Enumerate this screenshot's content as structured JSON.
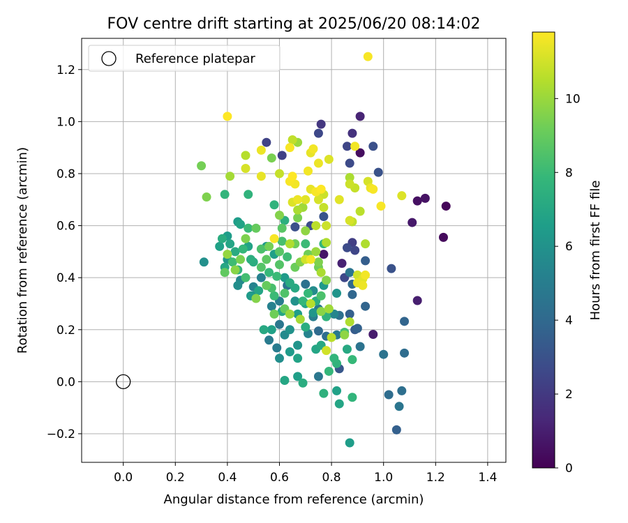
{
  "chart_data": {
    "type": "scatter",
    "title": "FOV centre drift starting at 2025/06/20 08:14:02",
    "xlabel": "Angular distance from reference (arcmin)",
    "ylabel": "Rotation from reference (arcmin)",
    "xlim": [
      -0.16,
      1.47
    ],
    "ylim": [
      -0.31,
      1.32
    ],
    "xticks": [
      "0.0",
      "0.2",
      "0.4",
      "0.6",
      "0.8",
      "1.0",
      "1.2",
      "1.4"
    ],
    "xtick_values": [
      0,
      0.2,
      0.4,
      0.6,
      0.8,
      1.0,
      1.2,
      1.4
    ],
    "yticks": [
      "−0.2",
      "0.0",
      "0.2",
      "0.4",
      "0.6",
      "0.8",
      "1.0",
      "1.2"
    ],
    "ytick_values": [
      -0.2,
      0,
      0.2,
      0.4,
      0.6,
      0.8,
      1.0,
      1.2
    ],
    "grid": true,
    "legend": {
      "position": "top-left",
      "label": "Reference platepar"
    },
    "reference_point": {
      "x": 0.0,
      "y": 0.0
    },
    "colorbar": {
      "label": "Hours from first FF file",
      "colormap": "viridis",
      "range": [
        0,
        11.8
      ],
      "ticks": [
        "0",
        "2",
        "4",
        "6",
        "8",
        "10"
      ],
      "tick_values": [
        0,
        2,
        4,
        6,
        8,
        10
      ]
    },
    "points": [
      {
        "x": 1.24,
        "y": 0.675,
        "h": 0.2
      },
      {
        "x": 1.23,
        "y": 0.555,
        "h": 0.3
      },
      {
        "x": 1.13,
        "y": 0.695,
        "h": 0.5
      },
      {
        "x": 1.16,
        "y": 0.705,
        "h": 0.6
      },
      {
        "x": 1.11,
        "y": 0.612,
        "h": 0.8
      },
      {
        "x": 1.13,
        "y": 0.312,
        "h": 1.0
      },
      {
        "x": 0.91,
        "y": 1.02,
        "h": 1.2
      },
      {
        "x": 0.91,
        "y": 0.88,
        "h": 0.4
      },
      {
        "x": 0.96,
        "y": 0.182,
        "h": 0.9
      },
      {
        "x": 0.77,
        "y": 0.49,
        "h": 0.7
      },
      {
        "x": 0.84,
        "y": 0.455,
        "h": 1.1
      },
      {
        "x": 0.76,
        "y": 0.99,
        "h": 1.9
      },
      {
        "x": 0.88,
        "y": 0.955,
        "h": 1.7
      },
      {
        "x": 0.75,
        "y": 0.955,
        "h": 2.6
      },
      {
        "x": 0.55,
        "y": 0.92,
        "h": 2.4
      },
      {
        "x": 0.61,
        "y": 0.87,
        "h": 2.3
      },
      {
        "x": 0.86,
        "y": 0.905,
        "h": 2.5
      },
      {
        "x": 0.96,
        "y": 0.905,
        "h": 2.9
      },
      {
        "x": 0.87,
        "y": 0.84,
        "h": 2.7
      },
      {
        "x": 0.98,
        "y": 0.805,
        "h": 3.0
      },
      {
        "x": 0.72,
        "y": 0.6,
        "h": 2.8
      },
      {
        "x": 0.66,
        "y": 0.595,
        "h": 2.9
      },
      {
        "x": 0.77,
        "y": 0.635,
        "h": 3.1
      },
      {
        "x": 0.88,
        "y": 0.535,
        "h": 2.2
      },
      {
        "x": 0.86,
        "y": 0.515,
        "h": 2.7
      },
      {
        "x": 0.89,
        "y": 0.505,
        "h": 2.5
      },
      {
        "x": 0.85,
        "y": 0.4,
        "h": 2.6
      },
      {
        "x": 0.93,
        "y": 0.465,
        "h": 3.5
      },
      {
        "x": 1.03,
        "y": 0.435,
        "h": 3.0
      },
      {
        "x": 1.05,
        "y": -0.185,
        "h": 3.6
      },
      {
        "x": 1.08,
        "y": 0.232,
        "h": 3.8
      },
      {
        "x": 1.07,
        "y": -0.035,
        "h": 4.3
      },
      {
        "x": 1.02,
        "y": -0.05,
        "h": 4.2
      },
      {
        "x": 1.06,
        "y": -0.095,
        "h": 4.6
      },
      {
        "x": 1.08,
        "y": 0.11,
        "h": 4.2
      },
      {
        "x": 1.0,
        "y": 0.105,
        "h": 4.5
      },
      {
        "x": 0.93,
        "y": 0.29,
        "h": 3.8
      },
      {
        "x": 0.87,
        "y": 0.26,
        "h": 3.6
      },
      {
        "x": 0.88,
        "y": 0.335,
        "h": 3.9
      },
      {
        "x": 0.88,
        "y": 0.375,
        "h": 4.0
      },
      {
        "x": 0.87,
        "y": 0.42,
        "h": 4.6
      },
      {
        "x": 0.9,
        "y": 0.205,
        "h": 3.7
      },
      {
        "x": 0.89,
        "y": 0.2,
        "h": 3.4
      },
      {
        "x": 0.91,
        "y": 0.135,
        "h": 4.5
      },
      {
        "x": 0.83,
        "y": 0.255,
        "h": 4.4
      },
      {
        "x": 0.83,
        "y": 0.05,
        "h": 3.2
      },
      {
        "x": 0.75,
        "y": 0.02,
        "h": 4.7
      },
      {
        "x": 0.75,
        "y": 0.195,
        "h": 4.1
      },
      {
        "x": 0.78,
        "y": 0.175,
        "h": 4.2
      },
      {
        "x": 0.82,
        "y": 0.18,
        "h": 4.8
      },
      {
        "x": 0.71,
        "y": 0.185,
        "h": 5.3
      },
      {
        "x": 0.7,
        "y": 0.375,
        "h": 4.4
      },
      {
        "x": 0.63,
        "y": 0.37,
        "h": 4.5
      },
      {
        "x": 0.6,
        "y": 0.22,
        "h": 4.7
      },
      {
        "x": 0.59,
        "y": 0.13,
        "h": 4.9
      },
      {
        "x": 0.56,
        "y": 0.16,
        "h": 4.9
      },
      {
        "x": 0.57,
        "y": 0.29,
        "h": 5.2
      },
      {
        "x": 0.6,
        "y": 0.31,
        "h": 5.0
      },
      {
        "x": 0.53,
        "y": 0.4,
        "h": 5.2
      },
      {
        "x": 0.5,
        "y": 0.33,
        "h": 5.6
      },
      {
        "x": 0.5,
        "y": 0.365,
        "h": 5.3
      },
      {
        "x": 0.44,
        "y": 0.37,
        "h": 5.8
      },
      {
        "x": 0.45,
        "y": 0.39,
        "h": 5.5
      },
      {
        "x": 0.31,
        "y": 0.46,
        "h": 5.9
      },
      {
        "x": 0.4,
        "y": 0.47,
        "h": 6.2
      },
      {
        "x": 0.44,
        "y": 0.615,
        "h": 6.5
      },
      {
        "x": 0.45,
        "y": 0.605,
        "h": 6.8
      },
      {
        "x": 0.48,
        "y": 0.72,
        "h": 7.6
      },
      {
        "x": 0.39,
        "y": 0.72,
        "h": 7.7
      },
      {
        "x": 0.58,
        "y": 0.68,
        "h": 7.6
      },
      {
        "x": 0.62,
        "y": 0.62,
        "h": 7.4
      },
      {
        "x": 0.55,
        "y": 0.52,
        "h": 6.3
      },
      {
        "x": 0.58,
        "y": 0.49,
        "h": 6.6
      },
      {
        "x": 0.62,
        "y": 0.4,
        "h": 6.4
      },
      {
        "x": 0.61,
        "y": 0.27,
        "h": 7.0
      },
      {
        "x": 0.66,
        "y": 0.31,
        "h": 6.0
      },
      {
        "x": 0.66,
        "y": 0.36,
        "h": 7.1
      },
      {
        "x": 0.7,
        "y": 0.3,
        "h": 6.8
      },
      {
        "x": 0.73,
        "y": 0.265,
        "h": 6.2
      },
      {
        "x": 0.74,
        "y": 0.31,
        "h": 7.4
      },
      {
        "x": 0.67,
        "y": 0.14,
        "h": 6.1
      },
      {
        "x": 0.67,
        "y": 0.09,
        "h": 6.8
      },
      {
        "x": 0.64,
        "y": 0.115,
        "h": 6.4
      },
      {
        "x": 0.6,
        "y": 0.09,
        "h": 5.8
      },
      {
        "x": 0.62,
        "y": 0.005,
        "h": 7.0
      },
      {
        "x": 0.67,
        "y": 0.02,
        "h": 6.6
      },
      {
        "x": 0.69,
        "y": -0.005,
        "h": 7.3
      },
      {
        "x": 0.74,
        "y": 0.125,
        "h": 6.9
      },
      {
        "x": 0.76,
        "y": 0.14,
        "h": 7.1
      },
      {
        "x": 0.79,
        "y": 0.04,
        "h": 7.8
      },
      {
        "x": 0.82,
        "y": 0.07,
        "h": 7.6
      },
      {
        "x": 0.82,
        "y": -0.035,
        "h": 6.7
      },
      {
        "x": 0.83,
        "y": -0.085,
        "h": 6.9
      },
      {
        "x": 0.77,
        "y": -0.045,
        "h": 7.5
      },
      {
        "x": 0.87,
        "y": -0.235,
        "h": 6.5
      },
      {
        "x": 0.88,
        "y": -0.06,
        "h": 7.7
      },
      {
        "x": 0.88,
        "y": 0.085,
        "h": 7.9
      },
      {
        "x": 0.85,
        "y": 0.19,
        "h": 8.2
      },
      {
        "x": 0.86,
        "y": 0.125,
        "h": 7.1
      },
      {
        "x": 0.81,
        "y": 0.09,
        "h": 7.7
      },
      {
        "x": 0.78,
        "y": 0.25,
        "h": 7.6
      },
      {
        "x": 0.71,
        "y": 0.34,
        "h": 7.9
      },
      {
        "x": 0.76,
        "y": 0.33,
        "h": 8.4
      },
      {
        "x": 0.64,
        "y": 0.38,
        "h": 7.2
      },
      {
        "x": 0.59,
        "y": 0.405,
        "h": 8.0
      },
      {
        "x": 0.62,
        "y": 0.34,
        "h": 8.5
      },
      {
        "x": 0.57,
        "y": 0.36,
        "h": 8.3
      },
      {
        "x": 0.56,
        "y": 0.42,
        "h": 7.9
      },
      {
        "x": 0.53,
        "y": 0.44,
        "h": 8.6
      },
      {
        "x": 0.46,
        "y": 0.51,
        "h": 7.8
      },
      {
        "x": 0.49,
        "y": 0.47,
        "h": 7.4
      },
      {
        "x": 0.41,
        "y": 0.53,
        "h": 6.9
      },
      {
        "x": 0.39,
        "y": 0.44,
        "h": 7.0
      },
      {
        "x": 0.38,
        "y": 0.55,
        "h": 7.3
      },
      {
        "x": 0.37,
        "y": 0.52,
        "h": 6.7
      },
      {
        "x": 0.4,
        "y": 0.56,
        "h": 6.5
      },
      {
        "x": 0.42,
        "y": 0.46,
        "h": 8.1
      },
      {
        "x": 0.44,
        "y": 0.43,
        "h": 7.6
      },
      {
        "x": 0.47,
        "y": 0.4,
        "h": 8.2
      },
      {
        "x": 0.53,
        "y": 0.51,
        "h": 8.4
      },
      {
        "x": 0.55,
        "y": 0.47,
        "h": 8.8
      },
      {
        "x": 0.6,
        "y": 0.45,
        "h": 8.6
      },
      {
        "x": 0.63,
        "y": 0.48,
        "h": 8.1
      },
      {
        "x": 0.66,
        "y": 0.44,
        "h": 9.1
      },
      {
        "x": 0.68,
        "y": 0.46,
        "h": 9.6
      },
      {
        "x": 0.71,
        "y": 0.49,
        "h": 9.2
      },
      {
        "x": 0.75,
        "y": 0.46,
        "h": 9.5
      },
      {
        "x": 0.76,
        "y": 0.42,
        "h": 10.3
      },
      {
        "x": 0.78,
        "y": 0.39,
        "h": 9.6
      },
      {
        "x": 0.74,
        "y": 0.5,
        "h": 10.0
      },
      {
        "x": 0.7,
        "y": 0.58,
        "h": 9.8
      },
      {
        "x": 0.66,
        "y": 0.53,
        "h": 9.2
      },
      {
        "x": 0.64,
        "y": 0.53,
        "h": 10.4
      },
      {
        "x": 0.6,
        "y": 0.5,
        "h": 8.7
      },
      {
        "x": 0.56,
        "y": 0.52,
        "h": 9.3
      },
      {
        "x": 0.51,
        "y": 0.59,
        "h": 9.0
      },
      {
        "x": 0.45,
        "y": 0.47,
        "h": 9.4
      },
      {
        "x": 0.43,
        "y": 0.43,
        "h": 9.7
      },
      {
        "x": 0.39,
        "y": 0.42,
        "h": 8.9
      },
      {
        "x": 0.4,
        "y": 0.49,
        "h": 9.9
      },
      {
        "x": 0.47,
        "y": 0.55,
        "h": 9.5
      },
      {
        "x": 0.55,
        "y": 0.37,
        "h": 9.0
      },
      {
        "x": 0.51,
        "y": 0.32,
        "h": 9.6
      },
      {
        "x": 0.58,
        "y": 0.26,
        "h": 9.2
      },
      {
        "x": 0.64,
        "y": 0.26,
        "h": 10.0
      },
      {
        "x": 0.68,
        "y": 0.24,
        "h": 10.2
      },
      {
        "x": 0.72,
        "y": 0.3,
        "h": 10.5
      },
      {
        "x": 0.76,
        "y": 0.27,
        "h": 9.7
      },
      {
        "x": 0.79,
        "y": 0.28,
        "h": 10.1
      },
      {
        "x": 0.8,
        "y": 0.17,
        "h": 10.6
      },
      {
        "x": 0.78,
        "y": 0.12,
        "h": 11.0
      },
      {
        "x": 0.85,
        "y": 0.18,
        "h": 9.8
      },
      {
        "x": 0.87,
        "y": 0.23,
        "h": 10.4
      },
      {
        "x": 0.9,
        "y": 0.41,
        "h": 11.0
      },
      {
        "x": 0.9,
        "y": 0.38,
        "h": 11.4
      },
      {
        "x": 0.92,
        "y": 0.37,
        "h": 11.5
      },
      {
        "x": 0.93,
        "y": 0.53,
        "h": 10.4
      },
      {
        "x": 0.87,
        "y": 0.62,
        "h": 11.1
      },
      {
        "x": 0.88,
        "y": 0.615,
        "h": 10.7
      },
      {
        "x": 0.91,
        "y": 0.655,
        "h": 10.6
      },
      {
        "x": 0.83,
        "y": 0.7,
        "h": 11.3
      },
      {
        "x": 0.78,
        "y": 0.6,
        "h": 10.9
      },
      {
        "x": 0.77,
        "y": 0.67,
        "h": 10.8
      },
      {
        "x": 0.74,
        "y": 0.6,
        "h": 10.6
      },
      {
        "x": 0.69,
        "y": 0.67,
        "h": 10.1
      },
      {
        "x": 0.67,
        "y": 0.66,
        "h": 10.3
      },
      {
        "x": 0.65,
        "y": 0.69,
        "h": 11.2
      },
      {
        "x": 0.67,
        "y": 0.63,
        "h": 9.4
      },
      {
        "x": 0.61,
        "y": 0.59,
        "h": 8.7
      },
      {
        "x": 0.6,
        "y": 0.64,
        "h": 9.6
      },
      {
        "x": 0.58,
        "y": 0.55,
        "h": 11.7
      },
      {
        "x": 0.53,
        "y": 0.79,
        "h": 11.4
      },
      {
        "x": 0.47,
        "y": 0.82,
        "h": 11.1
      },
      {
        "x": 0.47,
        "y": 0.87,
        "h": 10.5
      },
      {
        "x": 0.41,
        "y": 0.79,
        "h": 10.2
      },
      {
        "x": 0.4,
        "y": 1.02,
        "h": 11.8
      },
      {
        "x": 0.3,
        "y": 0.83,
        "h": 9.3
      },
      {
        "x": 0.32,
        "y": 0.71,
        "h": 9.5
      },
      {
        "x": 0.53,
        "y": 0.89,
        "h": 11.5
      },
      {
        "x": 0.57,
        "y": 0.86,
        "h": 9.4
      },
      {
        "x": 0.6,
        "y": 0.8,
        "h": 10.8
      },
      {
        "x": 0.64,
        "y": 0.9,
        "h": 11.7
      },
      {
        "x": 0.65,
        "y": 0.93,
        "h": 10.7
      },
      {
        "x": 0.67,
        "y": 0.92,
        "h": 10.0
      },
      {
        "x": 0.72,
        "y": 0.88,
        "h": 11.4
      },
      {
        "x": 0.73,
        "y": 0.895,
        "h": 11.6
      },
      {
        "x": 0.75,
        "y": 0.84,
        "h": 11.5
      },
      {
        "x": 0.79,
        "y": 0.855,
        "h": 11.2
      },
      {
        "x": 0.71,
        "y": 0.81,
        "h": 11.6
      },
      {
        "x": 0.72,
        "y": 0.74,
        "h": 11.4
      },
      {
        "x": 0.74,
        "y": 0.73,
        "h": 11.7
      },
      {
        "x": 0.76,
        "y": 0.74,
        "h": 11.8
      },
      {
        "x": 0.64,
        "y": 0.77,
        "h": 11.7
      },
      {
        "x": 0.65,
        "y": 0.79,
        "h": 11.8
      },
      {
        "x": 0.66,
        "y": 0.76,
        "h": 11.6
      },
      {
        "x": 0.67,
        "y": 0.7,
        "h": 11.5
      },
      {
        "x": 0.7,
        "y": 0.7,
        "h": 11.3
      },
      {
        "x": 0.75,
        "y": 0.7,
        "h": 11.1
      },
      {
        "x": 0.77,
        "y": 0.72,
        "h": 10.9
      },
      {
        "x": 0.89,
        "y": 0.905,
        "h": 11.6
      },
      {
        "x": 0.87,
        "y": 0.785,
        "h": 10.3
      },
      {
        "x": 0.89,
        "y": 0.745,
        "h": 10.8
      },
      {
        "x": 0.87,
        "y": 0.76,
        "h": 10.9
      },
      {
        "x": 0.94,
        "y": 0.77,
        "h": 11.1
      },
      {
        "x": 0.95,
        "y": 0.745,
        "h": 11.5
      },
      {
        "x": 0.96,
        "y": 0.74,
        "h": 11.7
      },
      {
        "x": 0.99,
        "y": 0.675,
        "h": 11.7
      },
      {
        "x": 1.07,
        "y": 0.715,
        "h": 11.2
      },
      {
        "x": 0.94,
        "y": 1.25,
        "h": 11.7
      },
      {
        "x": 0.93,
        "y": 0.41,
        "h": 11.6
      },
      {
        "x": 0.92,
        "y": 0.395,
        "h": 11.3
      },
      {
        "x": 0.72,
        "y": 0.47,
        "h": 11.6
      },
      {
        "x": 0.7,
        "y": 0.47,
        "h": 11.0
      },
      {
        "x": 0.78,
        "y": 0.535,
        "h": 10.4
      },
      {
        "x": 0.75,
        "y": 0.44,
        "h": 9.2
      },
      {
        "x": 0.62,
        "y": 0.28,
        "h": 9.0
      },
      {
        "x": 0.58,
        "y": 0.33,
        "h": 8.0
      },
      {
        "x": 0.69,
        "y": 0.31,
        "h": 7.8
      },
      {
        "x": 0.77,
        "y": 0.53,
        "h": 7.8
      },
      {
        "x": 0.7,
        "y": 0.53,
        "h": 8.0
      },
      {
        "x": 0.61,
        "y": 0.54,
        "h": 8.3
      },
      {
        "x": 0.48,
        "y": 0.52,
        "h": 6.8
      },
      {
        "x": 0.43,
        "y": 0.5,
        "h": 7.2
      },
      {
        "x": 0.48,
        "y": 0.59,
        "h": 8.0
      },
      {
        "x": 0.5,
        "y": 0.46,
        "h": 7.3
      },
      {
        "x": 0.52,
        "y": 0.35,
        "h": 6.9
      },
      {
        "x": 0.49,
        "y": 0.33,
        "h": 6.4
      },
      {
        "x": 0.54,
        "y": 0.2,
        "h": 7.1
      },
      {
        "x": 0.57,
        "y": 0.2,
        "h": 6.7
      },
      {
        "x": 0.62,
        "y": 0.18,
        "h": 5.6
      },
      {
        "x": 0.64,
        "y": 0.2,
        "h": 6.0
      },
      {
        "x": 0.67,
        "y": 0.26,
        "h": 6.5
      },
      {
        "x": 0.7,
        "y": 0.21,
        "h": 7.3
      },
      {
        "x": 0.73,
        "y": 0.25,
        "h": 5.0
      },
      {
        "x": 0.75,
        "y": 0.28,
        "h": 4.8
      },
      {
        "x": 0.81,
        "y": 0.26,
        "h": 5.4
      },
      {
        "x": 0.82,
        "y": 0.34,
        "h": 6.1
      },
      {
        "x": 0.77,
        "y": 0.37,
        "h": 6.3
      },
      {
        "x": 0.73,
        "y": 0.35,
        "h": 5.7
      }
    ]
  }
}
